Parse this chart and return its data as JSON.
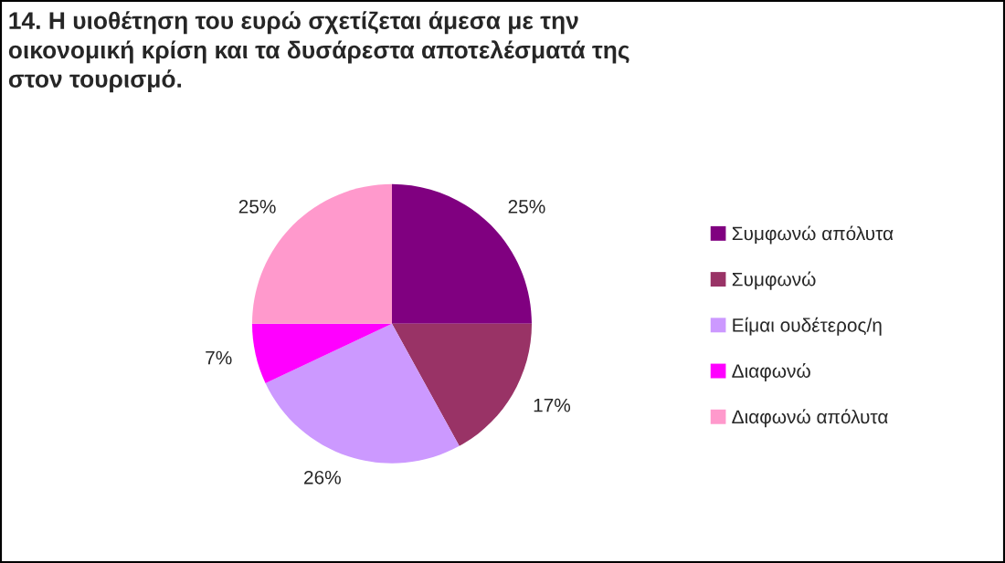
{
  "chart_data": {
    "type": "pie",
    "title": "14. Η υιοθέτηση του ευρώ σχετίζεται άμεσα με την\nοικονομική κρίση και τα δυσάρεστα αποτελέσματά της\nστον τουρισμό.",
    "categories": [
      "Συμφωνώ απόλυτα",
      "Συμφωνώ",
      "Είμαι ουδέτερος/η",
      "Διαφωνώ",
      "Διαφωνώ απόλυτα"
    ],
    "values": [
      25,
      17,
      26,
      7,
      25
    ],
    "value_labels": [
      "25%",
      "17%",
      "26%",
      "7%",
      "25%"
    ],
    "colors": [
      "#800080",
      "#993366",
      "#cc99ff",
      "#ff00ff",
      "#ff99cc"
    ],
    "legend": "right"
  }
}
